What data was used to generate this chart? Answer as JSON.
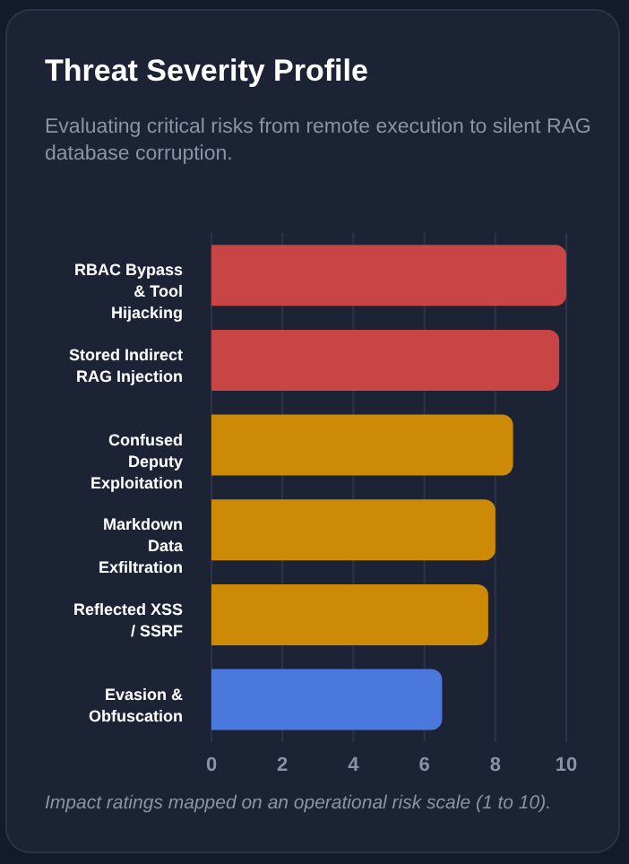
{
  "chart_data": {
    "type": "bar",
    "orientation": "horizontal",
    "title": "Threat Severity Profile",
    "subtitle": "Evaluating critical risks from remote execution to silent RAG database corruption.",
    "categories": [
      "RBAC Bypass & Tool Hijacking",
      "Stored Indirect RAG Injection",
      "Confused Deputy Exploitation",
      "Markdown Data Exfiltration",
      "Reflected XSS / SSRF",
      "Evasion & Obfuscation"
    ],
    "values": [
      10,
      9.8,
      8.5,
      8,
      7.8,
      6.5
    ],
    "colors": [
      "#c94545",
      "#c94545",
      "#cc8a06",
      "#cc8a06",
      "#cc8a06",
      "#4a78dc"
    ],
    "xlim": [
      0,
      10
    ],
    "xticks": [
      0,
      2,
      4,
      6,
      8,
      10
    ],
    "grid": "x",
    "annotations": [
      "Impact ratings mapped on an operational risk scale (1 to 10)."
    ]
  }
}
